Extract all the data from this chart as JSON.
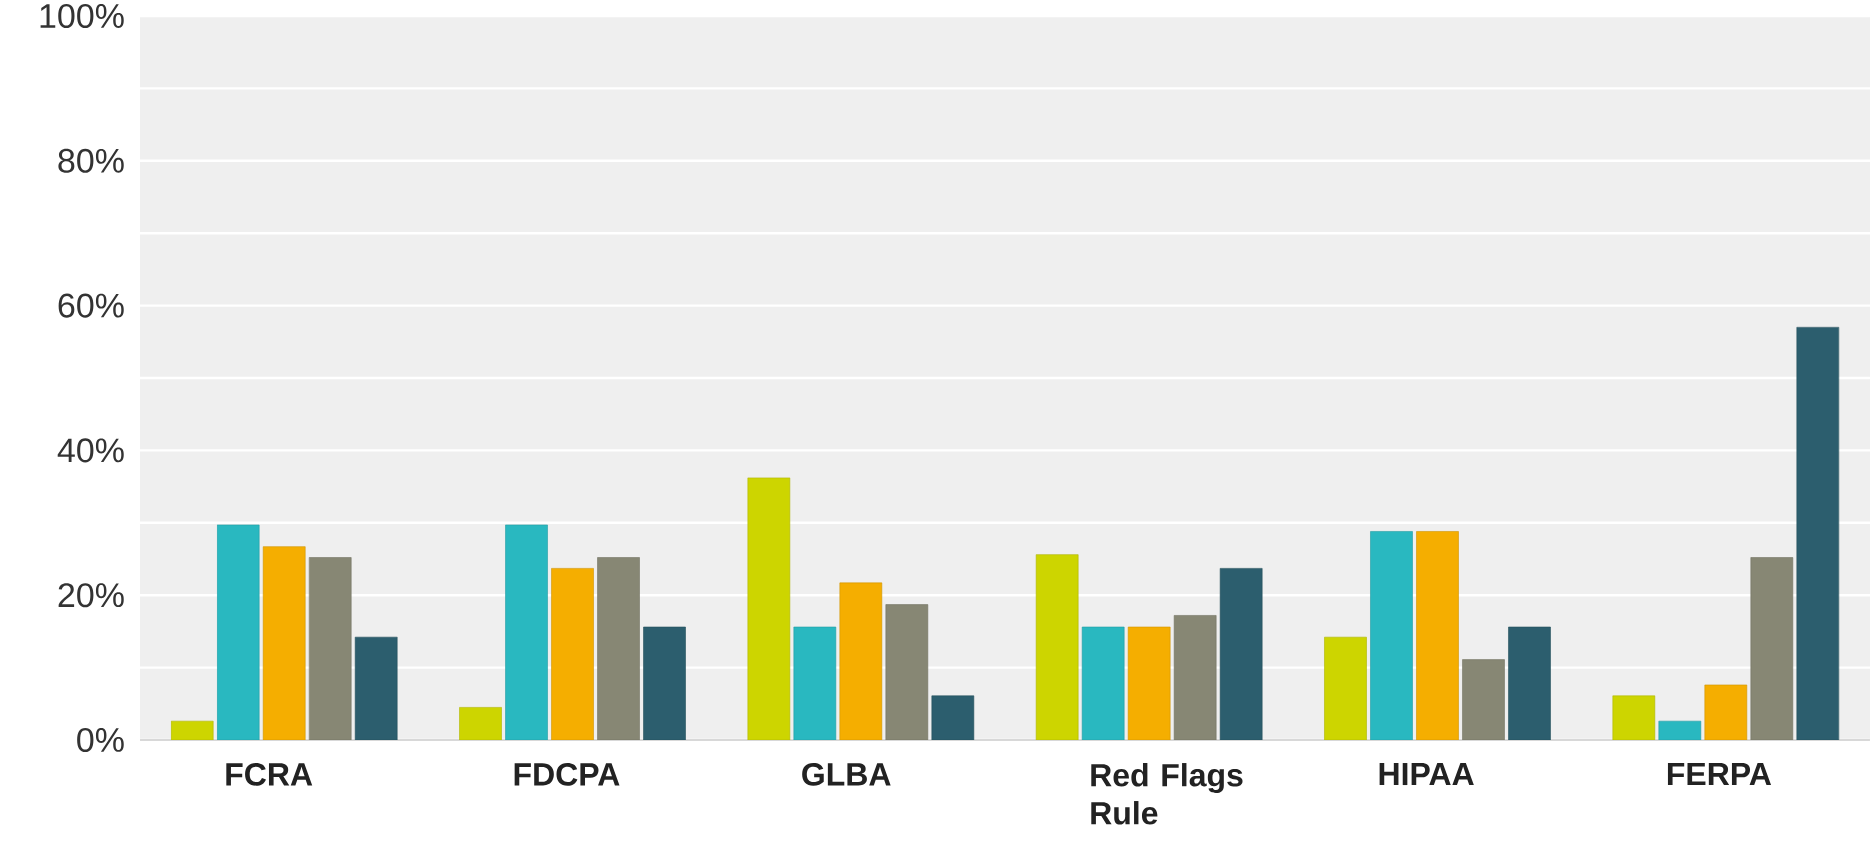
{
  "chart_data": {
    "type": "bar",
    "categories": [
      "FCRA",
      "FDCPA",
      "GLBA",
      "Red Flags Rule",
      "HIPAA",
      "FERPA"
    ],
    "series": [
      {
        "color": "#cdd500",
        "values": [
          2.6,
          4.5,
          36.2,
          25.6,
          14.2,
          6.1
        ]
      },
      {
        "color": "#29b8c0",
        "values": [
          29.7,
          29.7,
          15.6,
          15.6,
          28.8,
          2.6
        ]
      },
      {
        "color": "#f5ae00",
        "values": [
          26.7,
          23.7,
          21.7,
          15.6,
          28.8,
          7.6
        ]
      },
      {
        "color": "#878774",
        "values": [
          25.2,
          25.2,
          18.7,
          17.2,
          11.1,
          25.2
        ]
      },
      {
        "color": "#2c5e6e",
        "values": [
          14.2,
          15.6,
          6.1,
          23.7,
          15.6,
          57.0
        ]
      }
    ],
    "ylim": [
      0,
      100
    ],
    "yticks": [
      {
        "value": 0,
        "label": "0%"
      },
      {
        "value": 10,
        "label": null
      },
      {
        "value": 20,
        "label": "20%"
      },
      {
        "value": 30,
        "label": null
      },
      {
        "value": 40,
        "label": "40%"
      },
      {
        "value": 50,
        "label": null
      },
      {
        "value": 60,
        "label": "60%"
      },
      {
        "value": 70,
        "label": null
      },
      {
        "value": 80,
        "label": "80%"
      },
      {
        "value": 90,
        "label": null
      },
      {
        "value": 100,
        "label": "100%"
      }
    ],
    "grid": "y"
  }
}
